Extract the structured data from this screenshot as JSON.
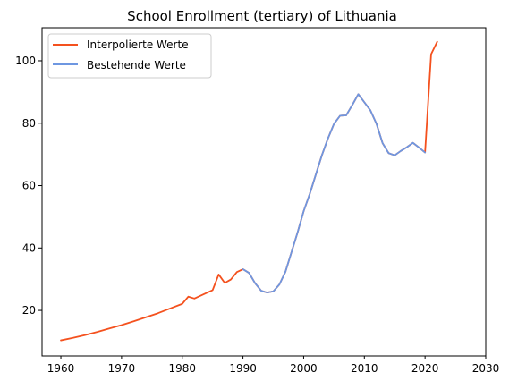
{
  "chart_data": {
    "type": "line",
    "title": "School Enrollment (tertiary) of Lithuania",
    "xlabel": "",
    "ylabel": "",
    "xlim": [
      1956.9,
      2030
    ],
    "ylim": [
      5.4,
      110.6
    ],
    "xticks": [
      1960,
      1970,
      1980,
      1990,
      2000,
      2010,
      2020,
      2030
    ],
    "yticks": [
      20,
      40,
      60,
      80,
      100
    ],
    "grid": false,
    "legend_position": "upper-left",
    "series": [
      {
        "name": "Interpolierte Werte",
        "color": "#f4511e",
        "x": [
          1960,
          1962,
          1964,
          1966,
          1968,
          1970,
          1972,
          1974,
          1976,
          1978,
          1980,
          1981,
          1982,
          1985,
          1986,
          1987,
          1988,
          1989,
          1990,
          1991,
          1992,
          1993,
          1994,
          1995,
          1996,
          1997,
          1998,
          1999,
          2000,
          2001,
          2002,
          2003,
          2004,
          2005,
          2006,
          2007,
          2008,
          2009,
          2010,
          2011,
          2012,
          2013,
          2014,
          2015,
          2016,
          2017,
          2018,
          2019,
          2020,
          2021,
          2022
        ],
        "y": [
          10.4,
          11.2,
          12.1,
          13.1,
          14.2,
          15.3,
          16.5,
          17.8,
          19.1,
          20.6,
          22.1,
          24.4,
          23.8,
          26.5,
          31.5,
          28.8,
          29.9,
          32.3,
          33.2,
          32.0,
          28.7,
          26.3,
          25.7,
          26.1,
          28.3,
          32.4,
          38.7,
          45.0,
          51.8,
          57.3,
          63.5,
          69.7,
          75.1,
          79.8,
          82.4,
          82.5,
          85.8,
          89.3,
          86.7,
          84.1,
          79.8,
          73.6,
          70.4,
          69.7,
          71.1,
          72.3,
          73.7,
          72.2,
          70.6,
          102.1,
          106.1
        ]
      },
      {
        "name": "Bestehende Werte",
        "color": "#6e97e1",
        "x": [
          1990,
          1991,
          1992,
          1993,
          1994,
          1995,
          1996,
          1997,
          1998,
          1999,
          2000,
          2001,
          2002,
          2003,
          2004,
          2005,
          2006,
          2007,
          2008,
          2009,
          2010,
          2011,
          2012,
          2013,
          2014,
          2015,
          2016,
          2017,
          2018,
          2019,
          2020
        ],
        "y": [
          33.2,
          32.0,
          28.7,
          26.3,
          25.7,
          26.1,
          28.3,
          32.4,
          38.7,
          45.0,
          51.8,
          57.3,
          63.5,
          69.7,
          75.1,
          79.8,
          82.4,
          82.5,
          85.8,
          89.3,
          86.7,
          84.1,
          79.8,
          73.6,
          70.4,
          69.7,
          71.1,
          72.3,
          73.7,
          72.2,
          70.6
        ]
      }
    ]
  }
}
